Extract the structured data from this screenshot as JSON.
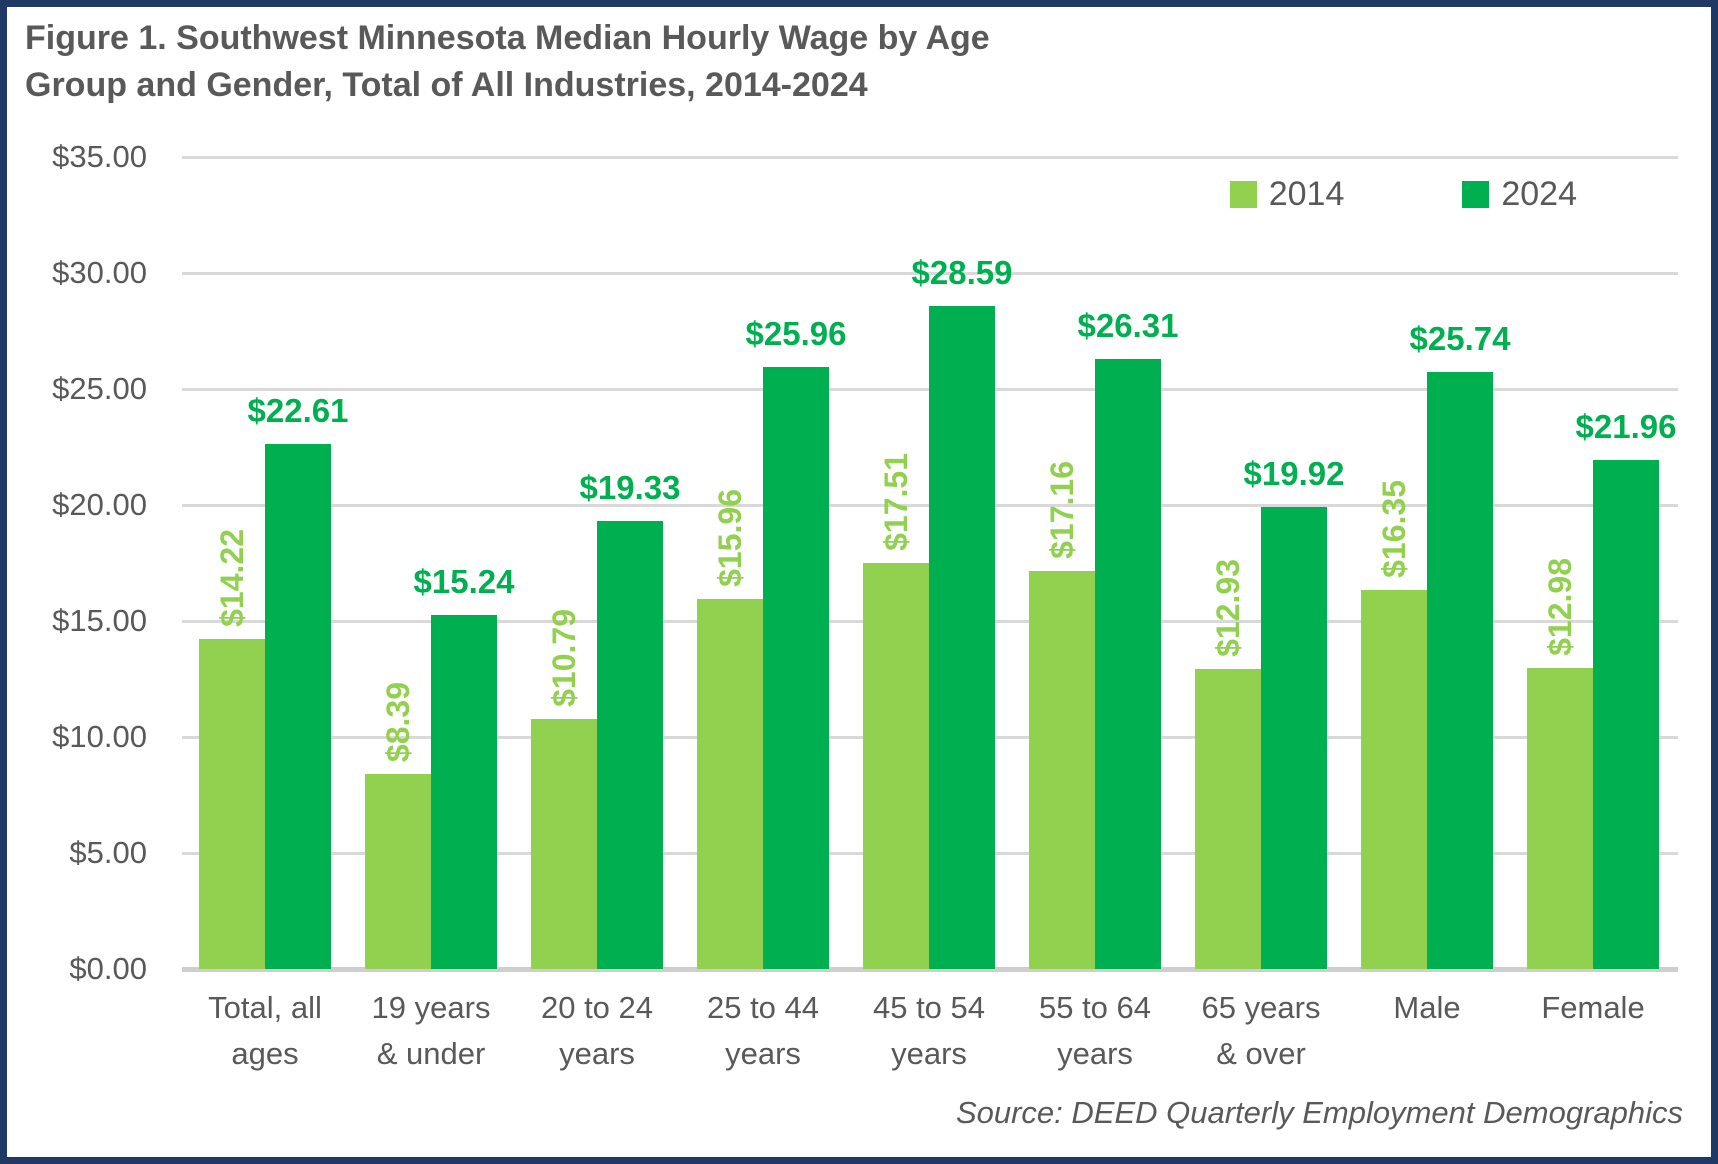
{
  "figure": {
    "title": "Figure 1. Southwest Minnesota Median Hourly Wage by Age\nGroup and Gender, Total of All Industries, 2014-2024",
    "source": "Source: DEED Quarterly Employment Demographics"
  },
  "legend": {
    "items": [
      {
        "label": "2014",
        "color": "#92D050"
      },
      {
        "label": "2024",
        "color": "#00B050"
      }
    ]
  },
  "colors": {
    "border": "#1F3864",
    "background": "#FFFFFF",
    "title_text": "#595959",
    "axis_text": "#595959",
    "gridline": "#D9D9D9",
    "baseline": "#CFCECE",
    "series_2014": "#92D050",
    "series_2024": "#00B050"
  },
  "chart_data": {
    "type": "bar",
    "title": "Figure 1. Southwest Minnesota Median Hourly Wage by Age Group and Gender, Total of All Industries, 2014-2024",
    "categories": [
      "Total, all ages",
      "19 years & under",
      "20 to 24 years",
      "25 to 44 years",
      "45 to 54 years",
      "55 to 64 years",
      "65 years & over",
      "Male",
      "Female"
    ],
    "category_labels": [
      "Total, all\nages",
      "19 years\n& under",
      "20 to 24\nyears",
      "25 to 44\nyears",
      "45 to 54\nyears",
      "55 to 64\nyears",
      "65 years\n& over",
      "Male",
      "Female"
    ],
    "series": [
      {
        "name": "2014",
        "color": "#92D050",
        "label_style": "rotated",
        "values": [
          14.22,
          8.39,
          10.79,
          15.96,
          17.51,
          17.16,
          12.93,
          16.35,
          12.98
        ],
        "labels": [
          "$14.22",
          "$8.39",
          "$10.79",
          "$15.96",
          "$17.51",
          "$17.16",
          "$12.93",
          "$16.35",
          "$12.98"
        ]
      },
      {
        "name": "2024",
        "color": "#00B050",
        "label_style": "horizontal",
        "values": [
          22.61,
          15.24,
          19.33,
          25.96,
          28.59,
          26.31,
          19.92,
          25.74,
          21.96
        ],
        "labels": [
          "$22.61",
          "$15.24",
          "$19.33",
          "$25.96",
          "$28.59",
          "$26.31",
          "$19.92",
          "$25.74",
          "$21.96"
        ]
      }
    ],
    "xlabel": "",
    "ylabel": "",
    "ylim": [
      0,
      35
    ],
    "yticks": [
      {
        "value": 0,
        "label": "$0.00"
      },
      {
        "value": 5,
        "label": "$5.00"
      },
      {
        "value": 10,
        "label": "$10.00"
      },
      {
        "value": 15,
        "label": "$15.00"
      },
      {
        "value": 20,
        "label": "$20.00"
      },
      {
        "value": 25,
        "label": "$25.00"
      },
      {
        "value": 30,
        "label": "$30.00"
      },
      {
        "value": 35,
        "label": "$35.00"
      }
    ],
    "grid": true,
    "legend_position": "top-right",
    "source": "Source: DEED Quarterly Employment Demographics"
  }
}
